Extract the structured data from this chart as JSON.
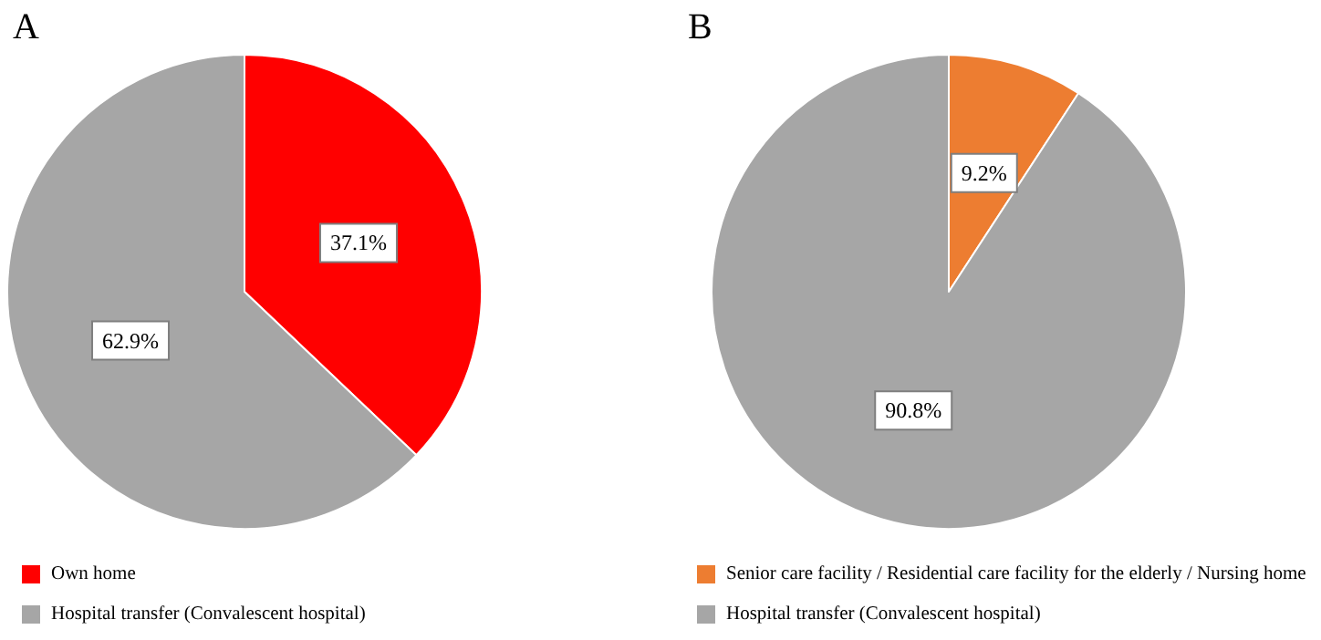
{
  "chart_data": [
    {
      "type": "pie",
      "title": "A",
      "categories": [
        "Own home",
        "Hospital transfer (Convalescent hospital)"
      ],
      "values": [
        37.1,
        62.9
      ],
      "value_labels": [
        "37.1%",
        "62.9%"
      ],
      "colors": [
        "#ff0000",
        "#a6a6a6"
      ],
      "legend": "bottom"
    },
    {
      "type": "pie",
      "title": "B",
      "categories": [
        "Senior care facility / Residential care facility for the elderly / Nursing home",
        "Hospital transfer (Convalescent hospital)"
      ],
      "values": [
        9.2,
        90.8
      ],
      "value_labels": [
        "9.2%",
        "90.8%"
      ],
      "colors": [
        "#ed7d31",
        "#a6a6a6"
      ],
      "legend": "bottom"
    }
  ]
}
